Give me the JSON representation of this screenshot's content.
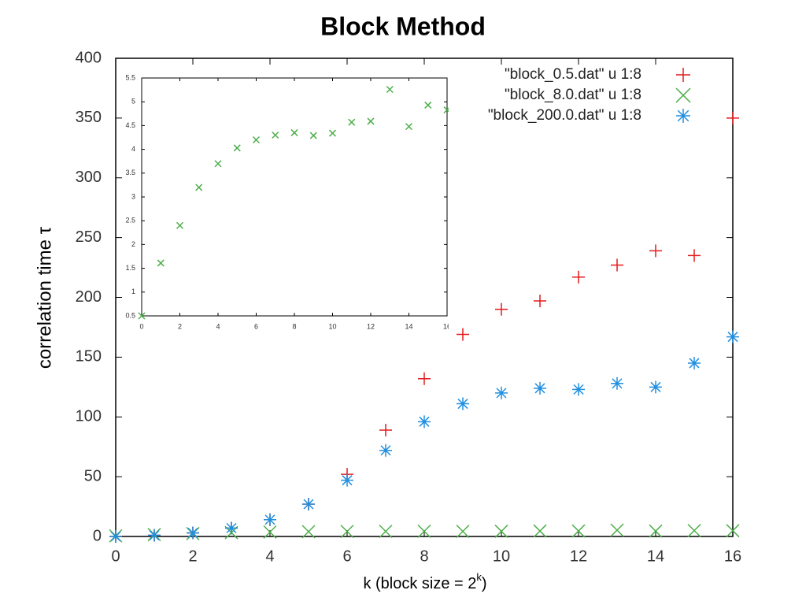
{
  "chart_data": [
    {
      "type": "scatter",
      "title": "Block Method",
      "x_label": [
        "k (block size = 2",
        "k",
        ")"
      ],
      "y_label": "correlation time τ",
      "xlim": [
        0,
        16
      ],
      "ylim": [
        0,
        400
      ],
      "xticks": [
        0,
        2,
        4,
        6,
        8,
        10,
        12,
        14,
        16
      ],
      "yticks": [
        0,
        50,
        100,
        150,
        200,
        250,
        300,
        350,
        400
      ],
      "x": [
        0,
        1,
        2,
        3,
        4,
        5,
        6,
        7,
        8,
        9,
        10,
        11,
        12,
        13,
        14,
        15,
        16
      ],
      "legend": "upper right",
      "series": [
        {
          "name": "\"block_0.5.dat\" u 1:8",
          "color": "#e41a1c",
          "marker": "plus",
          "values": [
            0,
            1,
            3,
            7,
            14,
            27,
            52,
            89,
            132,
            169,
            190,
            197,
            217,
            227,
            239,
            235,
            350
          ]
        },
        {
          "name": "\"block_8.0.dat\" u 1:8",
          "color": "#4daf4a",
          "marker": "cross",
          "values": [
            0.5,
            1.61,
            2.4,
            3.2,
            3.7,
            4.03,
            4.2,
            4.3,
            4.35,
            4.29,
            4.34,
            4.57,
            4.59,
            5.26,
            4.48,
            4.93,
            4.83
          ]
        },
        {
          "name": "\"block_200.0.dat\" u 1:8",
          "color": "#1f8fe0",
          "marker": "star",
          "values": [
            0,
            1,
            3,
            7,
            14,
            27,
            47,
            72,
            96,
            111,
            120,
            124,
            123,
            128,
            125,
            145,
            167
          ]
        }
      ]
    },
    {
      "type": "scatter",
      "xlim": [
        0,
        16
      ],
      "ylim": [
        0.5,
        5.5
      ],
      "xticks": [
        0,
        2,
        4,
        6,
        8,
        10,
        12,
        14,
        16
      ],
      "yticks": [
        0.5,
        1,
        1.5,
        2,
        2.5,
        3,
        3.5,
        4,
        4.5,
        5,
        5.5
      ],
      "x": [
        0,
        1,
        2,
        3,
        4,
        5,
        6,
        7,
        8,
        9,
        10,
        11,
        12,
        13,
        14,
        15,
        16
      ],
      "series": [
        {
          "color": "#4daf4a",
          "marker": "cross",
          "values": [
            0.5,
            1.61,
            2.4,
            3.2,
            3.7,
            4.03,
            4.2,
            4.3,
            4.35,
            4.29,
            4.34,
            4.57,
            4.59,
            5.26,
            4.48,
            4.93,
            4.83
          ]
        }
      ]
    }
  ]
}
